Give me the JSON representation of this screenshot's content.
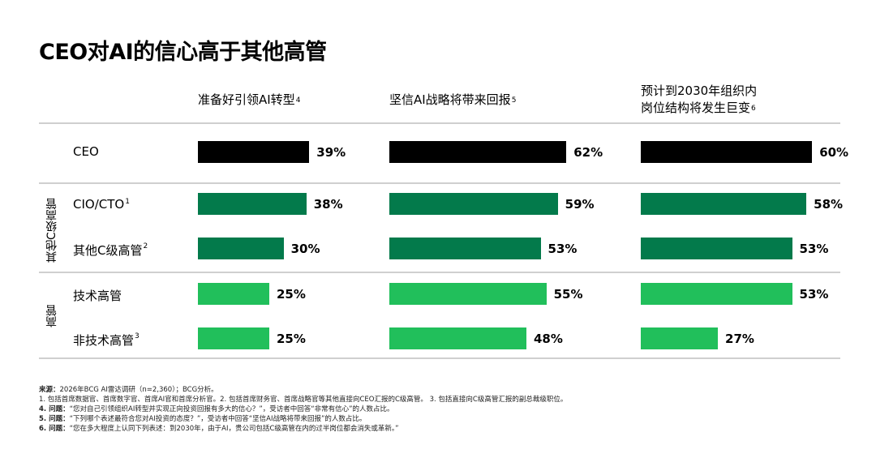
{
  "title": "CEO对AI的信心高于其他高管",
  "colors": {
    "ceo": "#000000",
    "c_level": "#037a4b",
    "exec": "#21bf5b",
    "divider": "#cfcfcf"
  },
  "columns": [
    {
      "lines": [
        "准备好引领AI转型"
      ],
      "sup": "4"
    },
    {
      "lines": [
        "坚信AI战略将带来回报"
      ],
      "sup": "5"
    },
    {
      "lines": [
        "预计到2030年组织内",
        "岗位结构将发生巨变"
      ],
      "sup": "6"
    }
  ],
  "groups": {
    "c_level": "其他C级高管",
    "exec": "高管"
  },
  "rows": [
    {
      "label": "CEO",
      "sup": "",
      "group": "ceo"
    },
    {
      "label": "CIO/CTO",
      "sup": "1",
      "group": "c_level"
    },
    {
      "label": "其他C级高管",
      "sup": "2",
      "group": "c_level"
    },
    {
      "label": "技术高管",
      "sup": "",
      "group": "exec"
    },
    {
      "label": "非技术高管",
      "sup": "3",
      "group": "exec"
    }
  ],
  "chart_data": {
    "type": "bar",
    "title": "CEO对AI的信心高于其他高管",
    "categories": [
      "CEO",
      "CIO/CTO",
      "其他C级高管",
      "技术高管",
      "非技术高管"
    ],
    "series": [
      {
        "name": "准备好引领AI转型",
        "values": [
          39,
          38,
          30,
          25,
          25
        ]
      },
      {
        "name": "坚信AI战略将带来回报",
        "values": [
          62,
          59,
          53,
          55,
          48
        ]
      },
      {
        "name": "预计到2030年组织内岗位结构将发生巨变",
        "values": [
          60,
          58,
          53,
          53,
          27
        ]
      }
    ],
    "value_suffix": "%",
    "ylim": [
      0,
      100
    ]
  },
  "footnotes": [
    {
      "bold": "来源：",
      "text": "2026年BCG AI雷达调研（n=2,360）；BCG分析。"
    },
    {
      "bold": "",
      "text": "1. 包括首席数据官、首席数字官、首席AI官和首席分析官。2. 包括首席财务官、首席战略官等其他直接向CEO汇报的C级高管。 3. 包括直接向C级高管汇报的副总裁级职位。"
    },
    {
      "bold": "4. 问题：",
      "text": "“您对自己引领组织AI转型并实现正向投资回报有多大的信心？”，受访者中回答“非常有信心”的人数占比。"
    },
    {
      "bold": "5. 问题：",
      "text": "“下列哪个表述最符合您对AI投资的态度？”，受访者中回答“坚信AI战略将带来回报”的人数占比。"
    },
    {
      "bold": "6. 问题：",
      "text": "“您在多大程度上认同下列表述：到2030年，由于AI，贵公司包括C级高管在内的过半岗位都会消失或革新。”"
    }
  ]
}
